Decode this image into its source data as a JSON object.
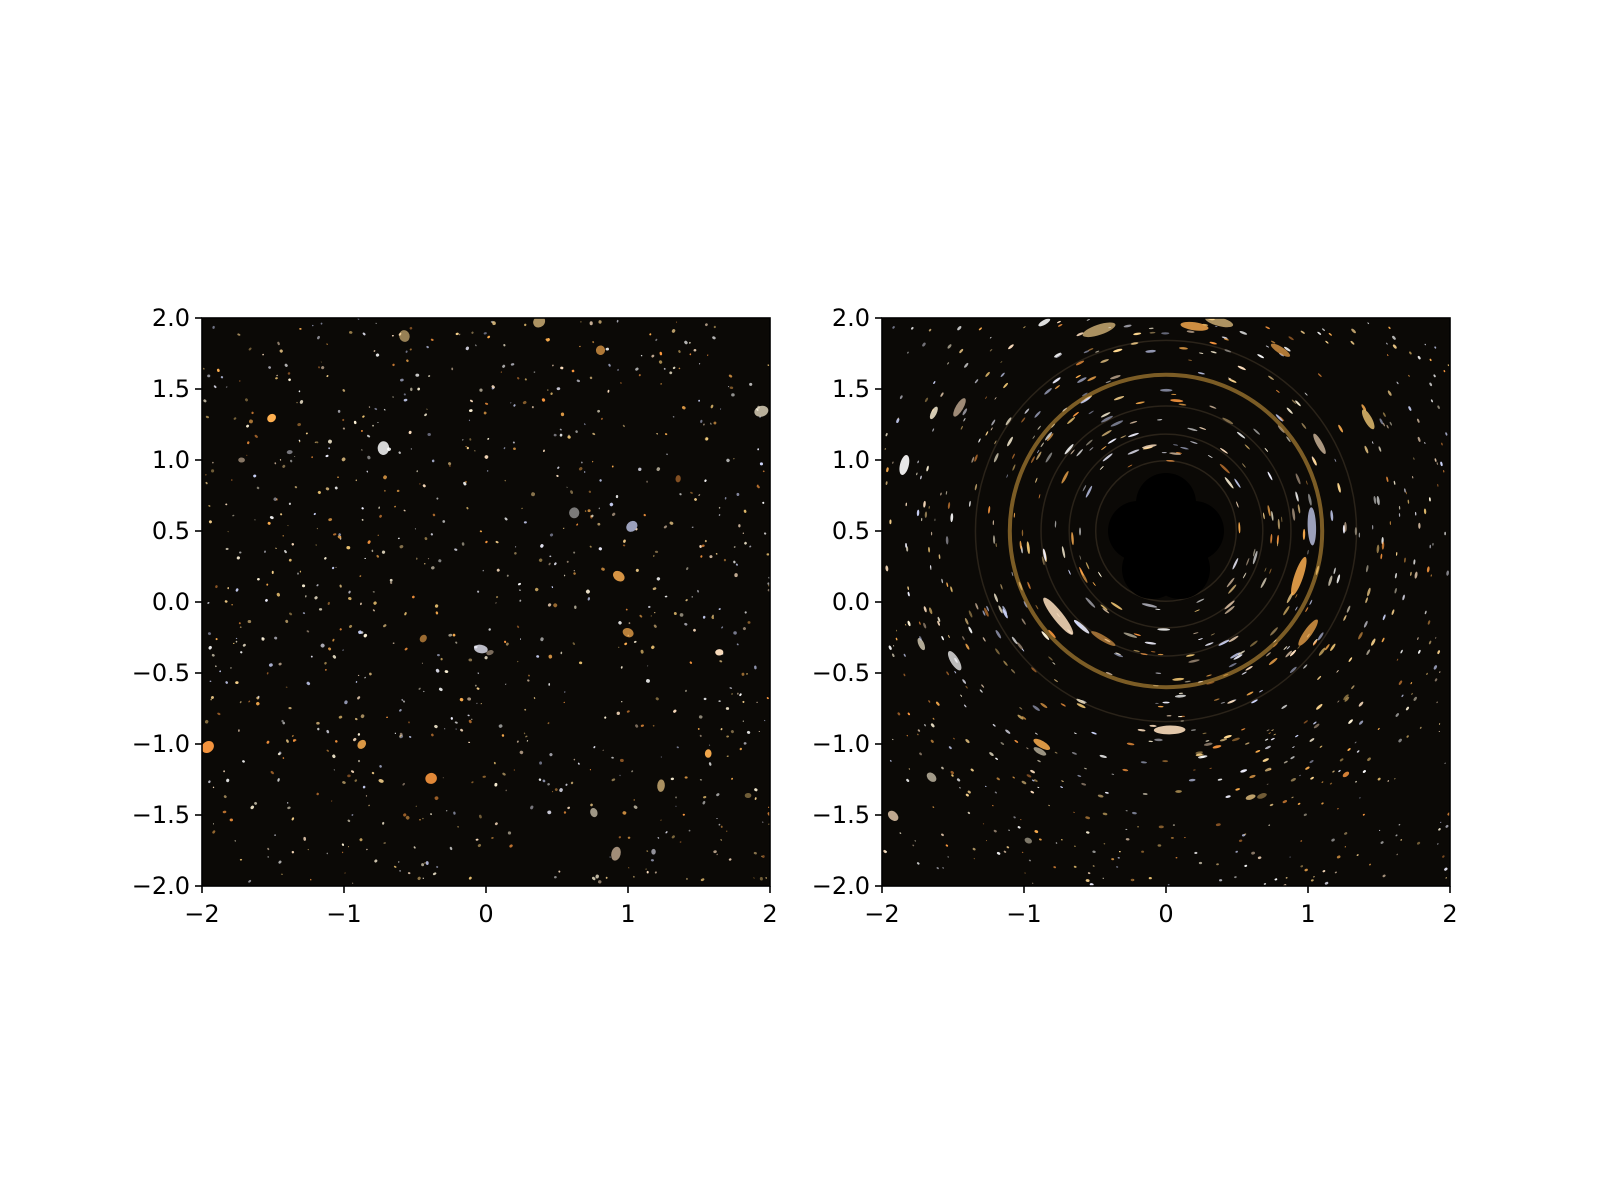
{
  "chart_data": [
    {
      "type": "image",
      "image": "galaxy-field",
      "x_ticks": [
        -2,
        -1,
        0,
        1,
        2
      ],
      "y_ticks": [
        -2.0,
        -1.5,
        -1.0,
        -0.5,
        0.0,
        0.5,
        1.0,
        1.5,
        2.0
      ],
      "x_tick_labels": [
        "−2",
        "−1",
        "0",
        "1",
        "2"
      ],
      "y_tick_labels": [
        "−2.0",
        "−1.5",
        "−1.0",
        "−0.5",
        "0.0",
        "0.5",
        "1.0",
        "1.5",
        "2.0"
      ],
      "xlim": [
        -2,
        2
      ],
      "ylim": [
        -2,
        2
      ],
      "grid": false
    },
    {
      "type": "image",
      "image": "galaxy-field-lensed",
      "x_ticks": [
        -2,
        -1,
        0,
        1,
        2
      ],
      "y_ticks": [
        -2.0,
        -1.5,
        -1.0,
        -0.5,
        0.0,
        0.5,
        1.0,
        1.5,
        2.0
      ],
      "x_tick_labels": [
        "−2",
        "−1",
        "0",
        "1",
        "2"
      ],
      "y_tick_labels": [
        "−2.0",
        "−1.5",
        "−1.0",
        "−0.5",
        "0.0",
        "0.5",
        "1.0",
        "1.5",
        "2.0"
      ],
      "xlim": [
        -2,
        2
      ],
      "ylim": [
        -2,
        2
      ],
      "grid": false,
      "shadow_center": [
        0.0,
        0.5
      ],
      "ring_radius": 1.1
    }
  ],
  "colors": {
    "sky": "#0b0906",
    "frame": "#000000",
    "ring": "#d8a040",
    "shadow": "#000000"
  }
}
